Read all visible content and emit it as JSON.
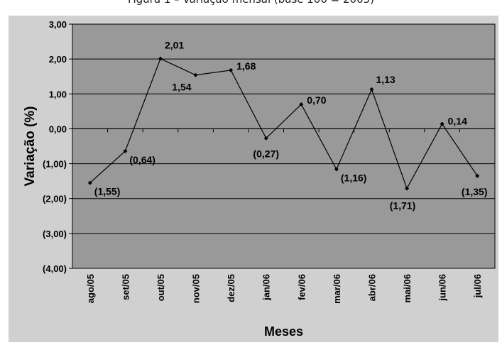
{
  "caption": "Figura 1 – Variação mensal (base 100 = 2005)",
  "chart_data": {
    "type": "line",
    "title": "",
    "xlabel": "Meses",
    "ylabel": "Variação (%)",
    "categories": [
      "ago/05",
      "set/05",
      "out/05",
      "nov/05",
      "dez/05",
      "jan/06",
      "fev/06",
      "mar/06",
      "abr/06",
      "mai/06",
      "jun/06",
      "jul/06"
    ],
    "series": [
      {
        "values": [
          -1.55,
          -0.64,
          2.01,
          1.54,
          1.68,
          -0.27,
          0.7,
          -1.16,
          1.13,
          -1.71,
          0.14,
          -1.35
        ],
        "labels": [
          "(1,55)",
          "(0,64)",
          "2,01",
          "1,54",
          "1,68",
          "(0,27)",
          "0,70",
          "(1,16)",
          "1,13",
          "(1,71)",
          "0,14",
          "(1,35)"
        ]
      }
    ],
    "ylim": [
      -4,
      3
    ],
    "yticks": [
      3,
      2,
      1,
      0,
      -1,
      -2,
      -3,
      -4
    ],
    "ytick_labels": [
      "3,00",
      "2,00",
      "1,00",
      "0,00",
      "(1,00)",
      "(2,00)",
      "(3,00)",
      "(4,00)"
    ],
    "grid": true,
    "plot_background": "#999999",
    "chart_background": "#d0d0d0",
    "line_color": "#000000"
  }
}
